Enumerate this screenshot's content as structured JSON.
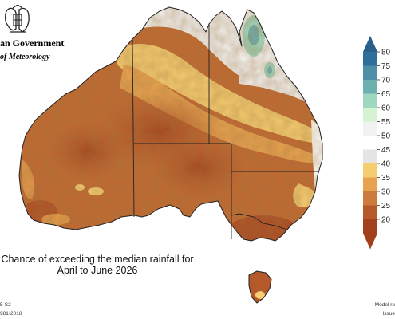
{
  "header": {
    "government_line": "an Government",
    "bureau_line": "of Meteorology",
    "crest_icon": "coat-of-arms-icon"
  },
  "map": {
    "caption_line1": "Chance of exceeding the median rainfall for",
    "caption_line2": "April to June 2026",
    "ocean_color": "#ffffff",
    "border_color": "#222222"
  },
  "legend": {
    "ticks": [
      80,
      75,
      70,
      65,
      60,
      55,
      50,
      45,
      40,
      35,
      30,
      25,
      20
    ],
    "colors": [
      "#2d6e9a",
      "#4d8fa7",
      "#6cb0b0",
      "#9fd7c0",
      "#d5f3d3",
      "#f2f2f2",
      "#ffffff",
      "#e5e5e5",
      "#f6cd70",
      "#e7a24f",
      "#cd7a3d",
      "#b5582a",
      "#a23f1c"
    ],
    "arrow_top_color": "#2a5f8c",
    "arrow_bottom_color": "#a23f1c"
  },
  "footer": {
    "left_line1": "5-S2",
    "left_line2": "981-2018",
    "right_line1": "Model ru",
    "right_line2": "Issue"
  }
}
